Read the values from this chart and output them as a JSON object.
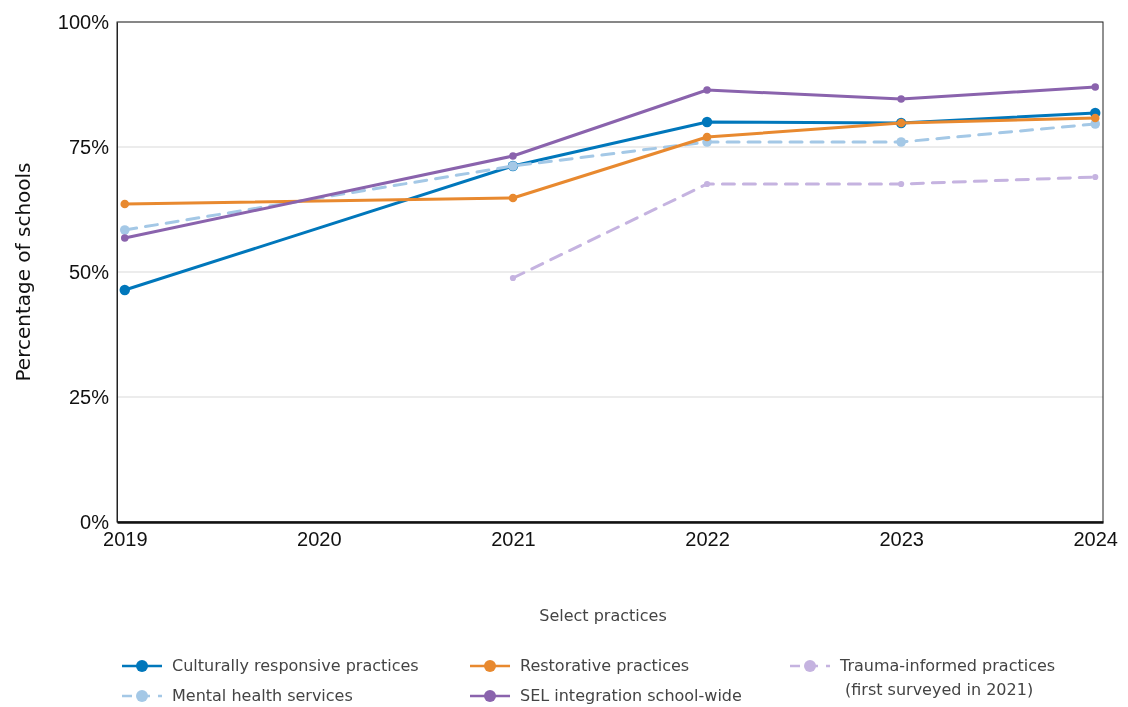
{
  "chart_data": {
    "type": "line",
    "ylabel": "Percentage of schools",
    "legend_title": "Select practices",
    "xlim": [
      2018.96,
      2024.04
    ],
    "xticks": [
      2019,
      2020,
      2021,
      2022,
      2023,
      2024
    ],
    "ylim": [
      0,
      100
    ],
    "yticks": [
      {
        "value": 0,
        "label": "0%"
      },
      {
        "value": 25,
        "label": "25%"
      },
      {
        "value": 50,
        "label": "50%"
      },
      {
        "value": 75,
        "label": "75%"
      },
      {
        "value": 100,
        "label": "100%"
      }
    ],
    "grid": "y",
    "legend": "bottom",
    "marker": "circle",
    "series": [
      {
        "name": "Culturally responsive practices",
        "color": "#0077bb",
        "line_style": "solid",
        "x": [
          2019,
          2021,
          2022,
          2023,
          2024
        ],
        "values": [
          46.4,
          71.2,
          80,
          79.8,
          81.8
        ]
      },
      {
        "name": "Mental health services",
        "color": "#a4c8e6",
        "line_style": "dashed",
        "x": [
          2019,
          2021,
          2022,
          2023,
          2024
        ],
        "values": [
          58.4,
          71.2,
          76,
          76,
          79.6
        ]
      },
      {
        "name": "Restorative practices",
        "color": "#e8892f",
        "line_style": "solid",
        "x": [
          2019,
          2021,
          2022,
          2023,
          2024
        ],
        "values": [
          63.6,
          64.8,
          77,
          79.8,
          80.8
        ]
      },
      {
        "name": "SEL integration school-wide",
        "color": "#8a63ad",
        "line_style": "solid",
        "x": [
          2019,
          2021,
          2022,
          2023,
          2024
        ],
        "values": [
          56.8,
          73.2,
          86.4,
          84.6,
          87
        ]
      },
      {
        "name": "Trauma-informed practices\n(first surveyed in 2021)",
        "color": "#c5b3e0",
        "line_style": "dashed",
        "x": [
          2021,
          2022,
          2023,
          2024
        ],
        "values": [
          48.8,
          67.6,
          67.6,
          69
        ]
      }
    ]
  }
}
